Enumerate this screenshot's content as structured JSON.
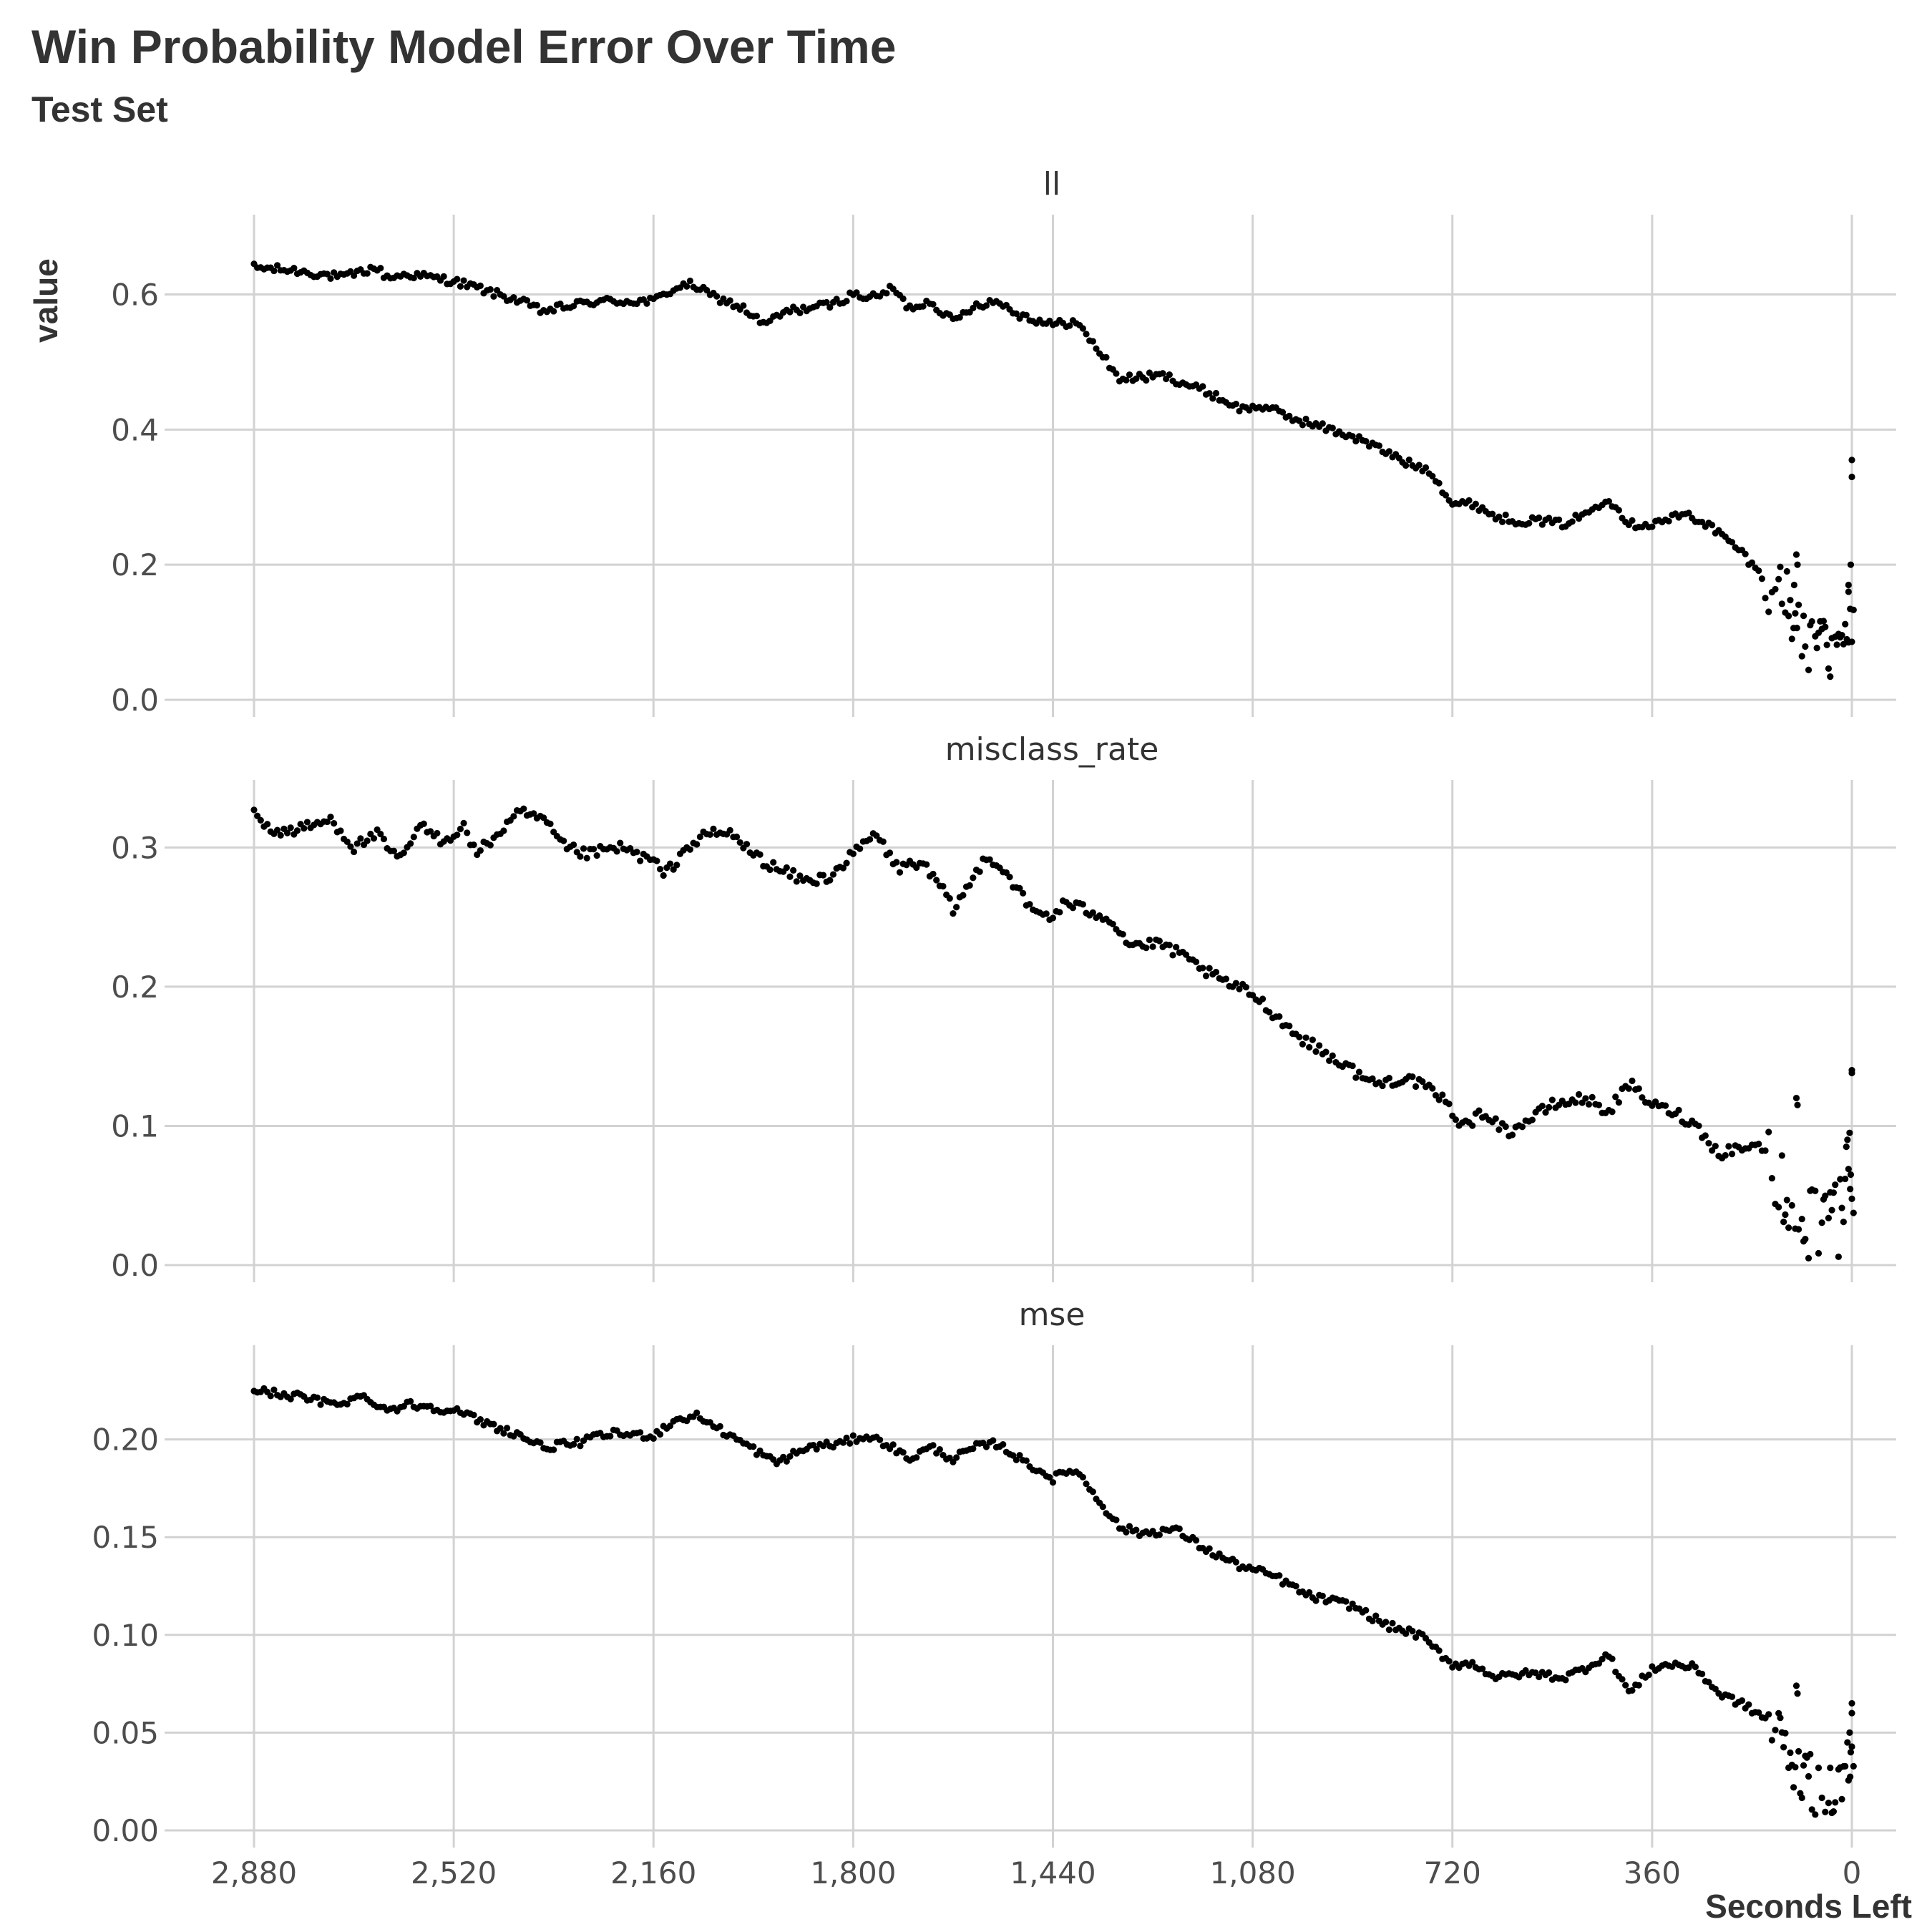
{
  "chart_data": {
    "type": "scatter",
    "title": "Win Probability Model Error Over Time",
    "subtitle": "Test Set",
    "xlabel": "Seconds Left",
    "ylabel": "value",
    "xlim": [
      2880,
      0
    ],
    "x_reversed": true,
    "x_ticks": [
      2880,
      2520,
      2160,
      1800,
      1440,
      1080,
      720,
      360,
      0
    ],
    "x_tick_labels": [
      "2,880",
      "2,520",
      "2,160",
      "1,800",
      "1,440",
      "1,080",
      "720",
      "360",
      "0"
    ],
    "grid": true,
    "facets": [
      {
        "name": "ll",
        "ylim": [
          0,
          0.68
        ],
        "y_ticks": [
          0,
          0.2,
          0.4,
          0.6
        ],
        "y_tick_labels": [
          "0.0",
          "0.2",
          "0.4",
          "0.6"
        ],
        "anchors": [
          [
            2880,
            0.64
          ],
          [
            2800,
            0.635
          ],
          [
            2720,
            0.625
          ],
          [
            2660,
            0.64
          ],
          [
            2640,
            0.625
          ],
          [
            2600,
            0.63
          ],
          [
            2560,
            0.625
          ],
          [
            2520,
            0.62
          ],
          [
            2460,
            0.605
          ],
          [
            2400,
            0.59
          ],
          [
            2360,
            0.575
          ],
          [
            2300,
            0.585
          ],
          [
            2260,
            0.59
          ],
          [
            2200,
            0.59
          ],
          [
            2160,
            0.59
          ],
          [
            2120,
            0.61
          ],
          [
            2090,
            0.615
          ],
          [
            2060,
            0.6
          ],
          [
            2000,
            0.58
          ],
          [
            1960,
            0.555
          ],
          [
            1920,
            0.575
          ],
          [
            1880,
            0.58
          ],
          [
            1840,
            0.585
          ],
          [
            1800,
            0.6
          ],
          [
            1760,
            0.595
          ],
          [
            1730,
            0.61
          ],
          [
            1700,
            0.58
          ],
          [
            1660,
            0.59
          ],
          [
            1620,
            0.56
          ],
          [
            1580,
            0.585
          ],
          [
            1540,
            0.59
          ],
          [
            1500,
            0.57
          ],
          [
            1440,
            0.555
          ],
          [
            1400,
            0.56
          ],
          [
            1360,
            0.52
          ],
          [
            1320,
            0.475
          ],
          [
            1240,
            0.48
          ],
          [
            1160,
            0.455
          ],
          [
            1100,
            0.43
          ],
          [
            1060,
            0.435
          ],
          [
            1020,
            0.42
          ],
          [
            960,
            0.405
          ],
          [
            900,
            0.39
          ],
          [
            860,
            0.375
          ],
          [
            800,
            0.35
          ],
          [
            760,
            0.34
          ],
          [
            720,
            0.29
          ],
          [
            680,
            0.29
          ],
          [
            640,
            0.27
          ],
          [
            600,
            0.265
          ],
          [
            560,
            0.265
          ],
          [
            520,
            0.26
          ],
          [
            480,
            0.275
          ],
          [
            440,
            0.3
          ],
          [
            400,
            0.26
          ],
          [
            360,
            0.26
          ],
          [
            300,
            0.275
          ],
          [
            260,
            0.26
          ],
          [
            200,
            0.22
          ],
          [
            160,
            0.18
          ],
          [
            120,
            0.16
          ],
          [
            100,
            0.1
          ],
          [
            80,
            0.08
          ],
          [
            40,
            0.07
          ],
          [
            20,
            0.08
          ],
          [
            0,
            0.1
          ]
        ],
        "noise": 0.006,
        "tail_noise": 0.045,
        "extra_points": [
          [
            0,
            0.355
          ],
          [
            0,
            0.33
          ],
          [
            2,
            0.2
          ],
          [
            6,
            0.17
          ],
          [
            100,
            0.215
          ],
          [
            98,
            0.2
          ],
          [
            104,
            0.17
          ],
          [
            6,
            0.16
          ]
        ]
      },
      {
        "name": "misclass_rate",
        "ylim": [
          0,
          0.33
        ],
        "y_ticks": [
          0,
          0.1,
          0.2,
          0.3
        ],
        "y_tick_labels": [
          "0.0",
          "0.1",
          "0.2",
          "0.3"
        ],
        "anchors": [
          [
            2880,
            0.325
          ],
          [
            2840,
            0.31
          ],
          [
            2780,
            0.315
          ],
          [
            2740,
            0.32
          ],
          [
            2700,
            0.3
          ],
          [
            2660,
            0.31
          ],
          [
            2620,
            0.29
          ],
          [
            2580,
            0.315
          ],
          [
            2540,
            0.305
          ],
          [
            2500,
            0.315
          ],
          [
            2480,
            0.295
          ],
          [
            2440,
            0.31
          ],
          [
            2400,
            0.325
          ],
          [
            2360,
            0.32
          ],
          [
            2320,
            0.3
          ],
          [
            2280,
            0.295
          ],
          [
            2220,
            0.3
          ],
          [
            2160,
            0.29
          ],
          [
            2140,
            0.28
          ],
          [
            2100,
            0.3
          ],
          [
            2060,
            0.31
          ],
          [
            2020,
            0.31
          ],
          [
            1980,
            0.295
          ],
          [
            1940,
            0.285
          ],
          [
            1880,
            0.275
          ],
          [
            1840,
            0.28
          ],
          [
            1800,
            0.295
          ],
          [
            1760,
            0.31
          ],
          [
            1720,
            0.285
          ],
          [
            1680,
            0.29
          ],
          [
            1640,
            0.27
          ],
          [
            1620,
            0.255
          ],
          [
            1580,
            0.28
          ],
          [
            1560,
            0.295
          ],
          [
            1520,
            0.28
          ],
          [
            1480,
            0.255
          ],
          [
            1440,
            0.25
          ],
          [
            1420,
            0.26
          ],
          [
            1380,
            0.255
          ],
          [
            1340,
            0.25
          ],
          [
            1300,
            0.23
          ],
          [
            1240,
            0.23
          ],
          [
            1180,
            0.215
          ],
          [
            1140,
            0.205
          ],
          [
            1080,
            0.195
          ],
          [
            1040,
            0.18
          ],
          [
            1000,
            0.165
          ],
          [
            960,
            0.155
          ],
          [
            920,
            0.145
          ],
          [
            860,
            0.13
          ],
          [
            800,
            0.135
          ],
          [
            740,
            0.12
          ],
          [
            700,
            0.1
          ],
          [
            660,
            0.11
          ],
          [
            620,
            0.095
          ],
          [
            580,
            0.105
          ],
          [
            540,
            0.115
          ],
          [
            480,
            0.12
          ],
          [
            440,
            0.11
          ],
          [
            400,
            0.13
          ],
          [
            360,
            0.115
          ],
          [
            320,
            0.11
          ],
          [
            280,
            0.1
          ],
          [
            240,
            0.08
          ],
          [
            200,
            0.085
          ],
          [
            160,
            0.085
          ],
          [
            130,
            0.06
          ],
          [
            100,
            0.04
          ],
          [
            60,
            0.025
          ],
          [
            30,
            0.03
          ],
          [
            0,
            0.05
          ]
        ],
        "noise": 0.004,
        "tail_noise": 0.03,
        "extra_points": [
          [
            0,
            0.14
          ],
          [
            0,
            0.138
          ],
          [
            100,
            0.12
          ],
          [
            98,
            0.115
          ],
          [
            4,
            0.095
          ],
          [
            8,
            0.09
          ],
          [
            10,
            0.085
          ],
          [
            2,
            0.065
          ]
        ]
      },
      {
        "name": "mse",
        "ylim": [
          0,
          0.235
        ],
        "y_ticks": [
          0,
          0.05,
          0.1,
          0.15,
          0.2
        ],
        "y_tick_labels": [
          "0.00",
          "0.05",
          "0.10",
          "0.15",
          "0.20"
        ],
        "anchors": [
          [
            2880,
            0.225
          ],
          [
            2800,
            0.222
          ],
          [
            2740,
            0.218
          ],
          [
            2680,
            0.222
          ],
          [
            2640,
            0.215
          ],
          [
            2600,
            0.218
          ],
          [
            2520,
            0.215
          ],
          [
            2460,
            0.208
          ],
          [
            2400,
            0.202
          ],
          [
            2360,
            0.196
          ],
          [
            2300,
            0.198
          ],
          [
            2240,
            0.203
          ],
          [
            2160,
            0.202
          ],
          [
            2120,
            0.21
          ],
          [
            2080,
            0.212
          ],
          [
            2040,
            0.205
          ],
          [
            1980,
            0.195
          ],
          [
            1940,
            0.188
          ],
          [
            1880,
            0.196
          ],
          [
            1820,
            0.198
          ],
          [
            1780,
            0.202
          ],
          [
            1740,
            0.198
          ],
          [
            1700,
            0.19
          ],
          [
            1660,
            0.196
          ],
          [
            1620,
            0.19
          ],
          [
            1580,
            0.196
          ],
          [
            1540,
            0.198
          ],
          [
            1500,
            0.19
          ],
          [
            1440,
            0.18
          ],
          [
            1400,
            0.185
          ],
          [
            1360,
            0.17
          ],
          [
            1320,
            0.155
          ],
          [
            1280,
            0.152
          ],
          [
            1220,
            0.154
          ],
          [
            1160,
            0.143
          ],
          [
            1100,
            0.135
          ],
          [
            1040,
            0.13
          ],
          [
            980,
            0.12
          ],
          [
            900,
            0.115
          ],
          [
            840,
            0.105
          ],
          [
            780,
            0.1
          ],
          [
            720,
            0.085
          ],
          [
            680,
            0.085
          ],
          [
            640,
            0.078
          ],
          [
            600,
            0.08
          ],
          [
            560,
            0.08
          ],
          [
            520,
            0.078
          ],
          [
            480,
            0.083
          ],
          [
            440,
            0.09
          ],
          [
            400,
            0.07
          ],
          [
            360,
            0.083
          ],
          [
            320,
            0.085
          ],
          [
            280,
            0.083
          ],
          [
            240,
            0.07
          ],
          [
            200,
            0.065
          ],
          [
            160,
            0.058
          ],
          [
            120,
            0.045
          ],
          [
            100,
            0.03
          ],
          [
            60,
            0.02
          ],
          [
            30,
            0.022
          ],
          [
            0,
            0.03
          ]
        ],
        "noise": 0.002,
        "tail_noise": 0.015,
        "extra_points": [
          [
            0,
            0.065
          ],
          [
            0,
            0.06
          ],
          [
            100,
            0.074
          ],
          [
            98,
            0.07
          ],
          [
            4,
            0.05
          ],
          [
            8,
            0.045
          ],
          [
            2,
            0.04
          ]
        ]
      }
    ]
  }
}
